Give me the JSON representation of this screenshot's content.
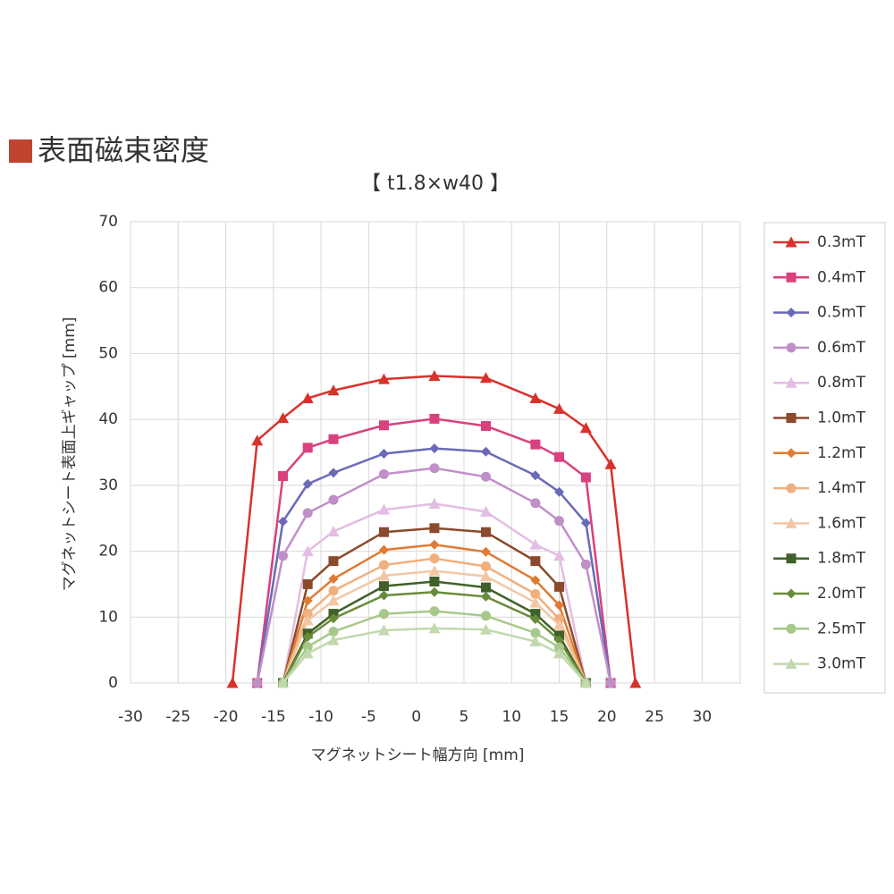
{
  "chart_data": {
    "type": "line",
    "title": "表面磁束密度",
    "subtitle": "【 t1.8×w40 】",
    "x_label": "マグネットシート幅方向 [mm]",
    "y_label": "マグネットシート表面上ギャップ [mm]",
    "x": [
      -19.3,
      -16.7,
      -14.0,
      -11.4,
      -8.7,
      -3.4,
      1.9,
      7.3,
      12.5,
      15.0,
      17.8,
      20.4,
      23.0
    ],
    "xlim": [
      -30,
      34
    ],
    "xticks": [
      -30,
      -25,
      -20,
      -15,
      -10,
      -5,
      0,
      5,
      10,
      15,
      20,
      25,
      30
    ],
    "ylim": [
      0,
      70
    ],
    "yticks": [
      0,
      10,
      20,
      30,
      40,
      50,
      60,
      70
    ],
    "grid": true,
    "legend": "right",
    "series": [
      {
        "name": "0.3mT",
        "color": "#d9312b",
        "marker": "triangle",
        "values": [
          0,
          36.8,
          40.2,
          43.2,
          44.4,
          46.1,
          46.6,
          46.3,
          43.2,
          41.6,
          38.7,
          33.2,
          0
        ]
      },
      {
        "name": "0.4mT",
        "color": "#d9407e",
        "marker": "square",
        "values": [
          null,
          0,
          31.4,
          35.7,
          37.0,
          39.1,
          40.1,
          39.0,
          36.2,
          34.3,
          31.2,
          0,
          null
        ]
      },
      {
        "name": "0.5mT",
        "color": "#6a6ab8",
        "marker": "diamond",
        "values": [
          null,
          0,
          24.5,
          30.2,
          31.9,
          34.8,
          35.6,
          35.1,
          31.5,
          29.0,
          24.3,
          0,
          null
        ]
      },
      {
        "name": "0.6mT",
        "color": "#c08fc8",
        "marker": "circle",
        "values": [
          null,
          0,
          19.3,
          25.8,
          27.8,
          31.7,
          32.6,
          31.3,
          27.3,
          24.6,
          18.0,
          0,
          null
        ]
      },
      {
        "name": "0.8mT",
        "color": "#e3bde2",
        "marker": "triangle",
        "values": [
          null,
          null,
          0,
          20.0,
          23.0,
          26.3,
          27.2,
          26.0,
          21.0,
          19.3,
          0,
          null,
          null
        ]
      },
      {
        "name": "1.0mT",
        "color": "#8b4a2b",
        "marker": "square",
        "values": [
          null,
          null,
          0,
          15.0,
          18.5,
          22.9,
          23.5,
          22.9,
          18.5,
          14.6,
          0,
          null,
          null
        ]
      },
      {
        "name": "1.2mT",
        "color": "#e07b34",
        "marker": "diamond",
        "values": [
          null,
          null,
          0,
          12.5,
          15.8,
          20.2,
          21.0,
          19.9,
          15.6,
          11.8,
          0,
          null,
          null
        ]
      },
      {
        "name": "1.4mT",
        "color": "#f0b07e",
        "marker": "circle",
        "values": [
          null,
          null,
          0,
          10.5,
          14.0,
          17.9,
          18.9,
          17.7,
          13.5,
          9.7,
          0,
          null,
          null
        ]
      },
      {
        "name": "1.6mT",
        "color": "#f3c7a4",
        "marker": "triangle",
        "values": [
          null,
          null,
          0,
          9.5,
          12.5,
          16.3,
          17.0,
          16.2,
          12.2,
          8.8,
          0,
          null,
          null
        ]
      },
      {
        "name": "1.8mT",
        "color": "#3f6129",
        "marker": "square",
        "values": [
          null,
          null,
          0,
          7.5,
          10.5,
          14.7,
          15.4,
          14.5,
          10.5,
          7.2,
          0,
          null,
          null
        ]
      },
      {
        "name": "2.0mT",
        "color": "#6a8c3a",
        "marker": "diamond",
        "values": [
          null,
          null,
          0,
          7.0,
          9.8,
          13.3,
          13.8,
          13.1,
          9.7,
          6.5,
          0,
          null,
          null
        ]
      },
      {
        "name": "2.5mT",
        "color": "#a6c98a",
        "marker": "circle",
        "values": [
          null,
          null,
          0,
          5.5,
          7.8,
          10.5,
          10.9,
          10.2,
          7.6,
          5.4,
          0,
          null,
          null
        ]
      },
      {
        "name": "3.0mT",
        "color": "#c2d9ae",
        "marker": "triangle",
        "values": [
          null,
          null,
          0,
          4.5,
          6.5,
          8.0,
          8.3,
          8.1,
          6.3,
          4.5,
          0,
          null,
          null
        ]
      }
    ]
  }
}
